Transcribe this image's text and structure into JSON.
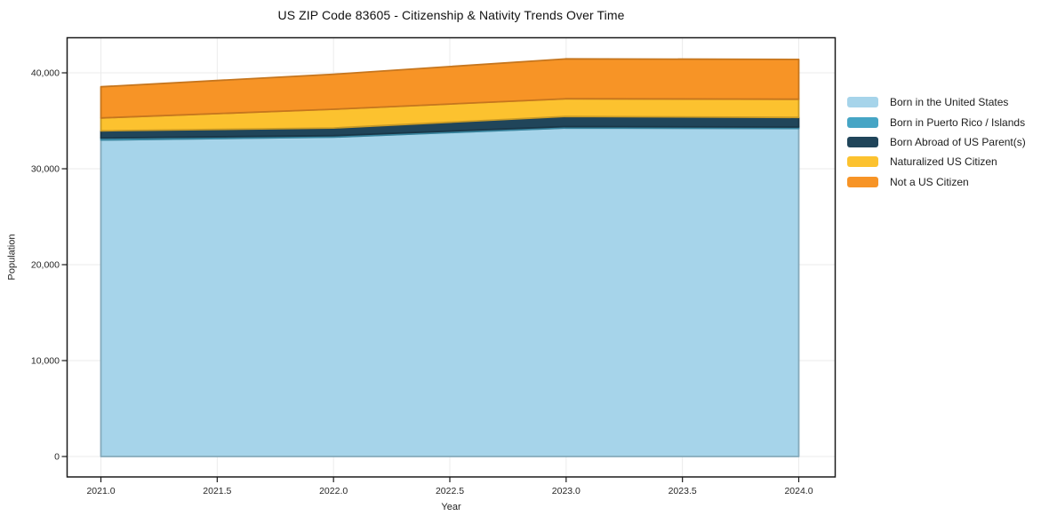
{
  "chart_data": {
    "type": "area",
    "stacked": true,
    "title": "US ZIP Code 83605 - Citizenship & Nativity Trends Over Time",
    "xlabel": "Year",
    "ylabel": "Population",
    "x": [
      2021,
      2022,
      2023,
      2024
    ],
    "series": [
      {
        "name": "Born in the United States",
        "color": "#a6d4ea",
        "values": [
          33000,
          33300,
          34250,
          34200
        ]
      },
      {
        "name": "Born in Puerto Rico / Islands",
        "color": "#46a5c5",
        "values": [
          200,
          150,
          150,
          150
        ]
      },
      {
        "name": "Born Abroad of US Parent(s)",
        "color": "#20455a",
        "values": [
          750,
          800,
          1050,
          1000
        ]
      },
      {
        "name": "Naturalized US Citizen",
        "color": "#fcc22f",
        "values": [
          1350,
          1950,
          1850,
          1900
        ]
      },
      {
        "name": "Not a US Citizen",
        "color": "#f79426",
        "values": [
          3250,
          3650,
          4150,
          4150
        ]
      }
    ],
    "stack_totals": [
      38550,
      39850,
      41450,
      41400
    ],
    "x_ticks": [
      2021.0,
      2021.5,
      2022.0,
      2022.5,
      2023.0,
      2023.5,
      2024.0
    ],
    "x_tick_labels": [
      "2021.0",
      "2021.5",
      "2022.0",
      "2022.5",
      "2023.0",
      "2023.5",
      "2024.0"
    ],
    "y_ticks": [
      0,
      10000,
      20000,
      30000,
      40000
    ],
    "y_tick_labels": [
      "0",
      "10,000",
      "20,000",
      "30,000",
      "40,000"
    ],
    "xlim": [
      2020.85,
      2024.16
    ],
    "ylim": [
      -1950,
      43700
    ],
    "grid": true,
    "legend_position": "right"
  }
}
